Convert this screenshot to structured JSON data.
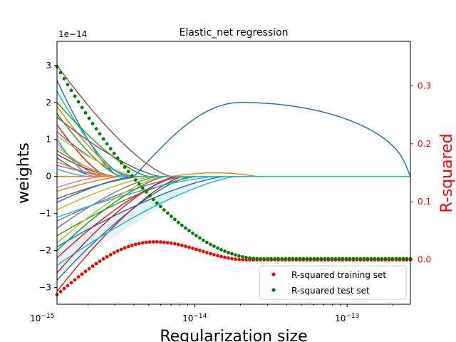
{
  "chart_data": {
    "type": "line",
    "title": "Elastic_net regression",
    "xlabel": "Regularization size",
    "ylabel_left": "weights",
    "ylabel_right": "R-squared",
    "x_scale": "log",
    "x_range": [
      1.25e-15,
      2.6e-13
    ],
    "xticks": [
      {
        "value": 1e-15,
        "label": "10^{-15}",
        "base": "10",
        "exp": "−15"
      },
      {
        "value": 1e-14,
        "label": "10^{-14}",
        "base": "10",
        "exp": "−14"
      },
      {
        "value": 1e-13,
        "label": "10^{-13}",
        "base": "10",
        "exp": "−13"
      }
    ],
    "left_axis": {
      "multiplier_label": "1e−14",
      "range_e14": [
        -3.45,
        3.65
      ],
      "ticks": [
        3,
        2,
        1,
        0,
        -1,
        -2,
        -3
      ],
      "tick_labels": [
        "3",
        "2",
        "1",
        "0",
        "−1",
        "−2",
        "−3"
      ]
    },
    "right_axis": {
      "range": [
        -0.0765,
        0.3765
      ],
      "ticks": [
        0.3,
        0.2,
        0.1,
        0.0
      ],
      "tick_labels": [
        "0.3",
        "0.2",
        "0.1",
        "0.0"
      ],
      "color": "#ff0000"
    },
    "legend": {
      "position": "lower-right",
      "entries": [
        {
          "label": "R-squared training set",
          "color": "#ff0000"
        },
        {
          "label": "R-squared test set",
          "color": "#008000"
        }
      ]
    },
    "r2_train": {
      "start": -0.06,
      "peak": 0.031,
      "peak_x": 5.5e-15,
      "end": 0.0,
      "flat_x": 2.2e-14
    },
    "r2_test": {
      "start": 0.333,
      "end": 0.002,
      "flat_x": 2.6e-14
    },
    "weight_band": {
      "color": "#cfe3f1"
    },
    "weight_series": [
      {
        "color": "#1f77b4",
        "start": 2.6,
        "zero_at": 3.2e-15
      },
      {
        "color": "#ff7f0e",
        "start": 1.9,
        "zero_at": 3.6e-15
      },
      {
        "color": "#2ca02c",
        "start": 1.7,
        "zero_at": 3.3e-15
      },
      {
        "color": "#d62728",
        "start": 1.4,
        "zero_at": 2.7e-15
      },
      {
        "color": "#9467bd",
        "start": 1.2,
        "zero_at": 3.9e-15
      },
      {
        "color": "#8c564b",
        "start": 3.0,
        "zero_at": 7e-15
      },
      {
        "color": "#e377c2",
        "start": 0.9,
        "zero_at": 2.4e-15
      },
      {
        "color": "#7f7f7f",
        "start": 0.7,
        "zero_at": 3e-15
      },
      {
        "color": "#bcbd22",
        "start": 1.1,
        "zero_at": 4.2e-15
      },
      {
        "color": "#17becf",
        "start": 2.3,
        "zero_at": 3.5e-15
      },
      {
        "color": "#1f77b4",
        "start": 0.5,
        "zero_at": 2.2e-15
      },
      {
        "color": "#2ca02c",
        "start": 2.0,
        "zero_at": 5e-15
      },
      {
        "color": "#8c564b",
        "start": 1.6,
        "zero_at": 6e-15
      },
      {
        "color": "#d62728",
        "start": 0.6,
        "zero_at": 2.9e-15
      },
      {
        "color": "#ff7f0e",
        "start": 0.4,
        "zero_at": 2.6e-15
      },
      {
        "color": "#9467bd",
        "start": 0.3,
        "zero_at": 3.1e-15
      },
      {
        "color": "#17becf",
        "start": 1.0,
        "zero_at": 2.1e-15
      },
      {
        "color": "#bcbd22",
        "start": 0.8,
        "zero_at": 2.8e-15
      },
      {
        "color": "#1f77b4",
        "start": -2.8,
        "zero_at": 9.5e-15
      },
      {
        "color": "#d62728",
        "start": -3.1,
        "zero_at": 8.5e-15
      },
      {
        "color": "#17becf",
        "start": -2.4,
        "zero_at": 1.9e-14
      },
      {
        "color": "#1f77b4",
        "start": -1.9,
        "zero_at": 1.6e-14
      },
      {
        "color": "#2ca02c",
        "start": -1.6,
        "zero_at": 1.05e-14
      },
      {
        "color": "#d62728",
        "start": -2.2,
        "zero_at": 8e-15
      },
      {
        "color": "#9467bd",
        "start": -1.2,
        "zero_at": 9e-15
      },
      {
        "color": "#bcbd22",
        "start": -0.9,
        "zero_at": 5.5e-15
      },
      {
        "color": "#8c564b",
        "start": -0.6,
        "zero_at": 4.5e-15
      },
      {
        "color": "#ff7f0e",
        "start": -0.4,
        "zero_at": 3.4e-15
      },
      {
        "color": "#7f7f7f",
        "start": -1.4,
        "zero_at": 5.8e-15
      },
      {
        "color": "#e377c2",
        "start": -0.3,
        "zero_at": 2.5e-15
      },
      {
        "color": "#17becf",
        "start": -1.1,
        "zero_at": 1.4e-14
      },
      {
        "color": "#2ca02c",
        "start": -2.0,
        "zero_at": 6.5e-15
      },
      {
        "color": "#1f77b4",
        "start": -0.7,
        "zero_at": 4e-15
      },
      {
        "color": "#d62728",
        "start": -2.6,
        "zero_at": 7.5e-15
      },
      {
        "color": "#bcbd22",
        "start": -1.8,
        "zero_at": 6.2e-15
      },
      {
        "color": "#17becf",
        "start": 0.2,
        "zero_at": 2e-15
      }
    ],
    "long_series": {
      "color": "#1f77b4",
      "peak": 2.0,
      "peak_x": 2e-14,
      "start_x": 4e-15,
      "end_x": 2.5e-13
    },
    "hump_series": [
      {
        "color": "#ff7f0e",
        "peak": 0.1,
        "peak_x": 1.4e-14,
        "start_x": 7e-15,
        "end_x": 2.6e-14
      }
    ]
  }
}
